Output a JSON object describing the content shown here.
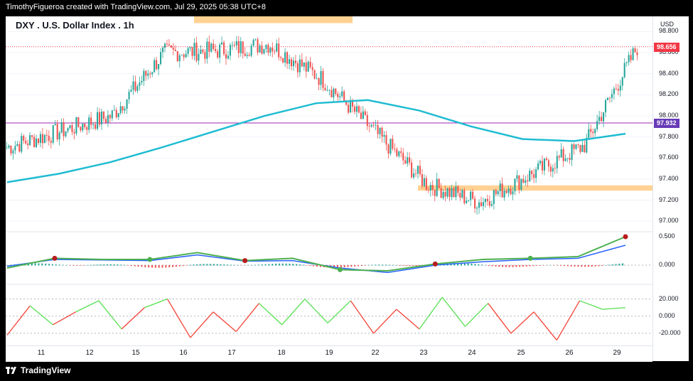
{
  "header": {
    "text": "TimothyFigueroa created with TradingView.com, Jul 29, 2025 05:38 UTC+8"
  },
  "branding": {
    "name": "TradingView"
  },
  "chart_header": {
    "symbol": "DXY . U.S. Dollar Index . 1h",
    "currency": "USD"
  },
  "price_axis": {
    "labels": [
      "98.800",
      "98.600",
      "98.400",
      "98.200",
      "98.000",
      "97.800",
      "97.600",
      "97.400",
      "97.200",
      "97.000"
    ],
    "current_price_tag": "98.656",
    "line_tag": "97.932"
  },
  "macd_axis": {
    "labels": [
      "0.500",
      "0.000"
    ]
  },
  "osc_axis": {
    "labels": [
      "20.000",
      "0.000",
      "-20.000"
    ]
  },
  "time_axis": {
    "labels": [
      "11",
      "12",
      "15",
      "16",
      "17",
      "18",
      "19",
      "22",
      "23",
      "24",
      "25",
      "26",
      "29"
    ]
  },
  "colors": {
    "up": "#26a69a",
    "down": "#ef5350",
    "ma": "#1fbcd2",
    "zone": "#ffca80",
    "horizontal_line": "#9c27b0",
    "macd_fast": "#4caf50",
    "macd_slow": "#2962ff",
    "macd_red": "#b71c1c",
    "osc_up": "#55e04f",
    "osc_down": "#f44336",
    "price_tag": "#f23645"
  },
  "chart_data": [
    {
      "type": "line",
      "title": "DXY . U.S. Dollar Index . 1h",
      "ylabel": "USD",
      "ylim": [
        96.9,
        98.85
      ],
      "x": [
        "11",
        "12",
        "15",
        "16",
        "17",
        "18",
        "19",
        "22",
        "23",
        "24",
        "25",
        "26",
        "29"
      ],
      "series": [
        {
          "values": [
            97.7,
            97.85,
            98.0,
            98.6,
            98.62,
            98.68,
            98.35,
            97.85,
            97.35,
            97.18,
            97.45,
            97.72,
            98.65
          ]
        },
        {
          "values": [
            97.37,
            97.45,
            97.56,
            97.7,
            97.85,
            98.0,
            98.12,
            98.15,
            98.05,
            97.9,
            97.78,
            97.76,
            97.83
          ]
        }
      ],
      "zones": [
        {
          "from": 98.88,
          "to": 98.95
        },
        {
          "from": 97.29,
          "to": 97.34
        }
      ],
      "horizontal_line": 97.932,
      "last_price": 98.656
    },
    {
      "type": "line",
      "ylim": [
        -0.25,
        0.55
      ],
      "series": [
        {
          "values": [
            -0.05,
            0.12,
            0.1,
            0.1,
            0.22,
            0.08,
            0.12,
            -0.08,
            -0.1,
            0.02,
            0.1,
            0.12,
            0.15,
            0.5
          ]
        },
        {
          "values": [
            -0.02,
            0.1,
            0.09,
            0.08,
            0.18,
            0.07,
            0.08,
            -0.05,
            -0.13,
            0.0,
            0.06,
            0.1,
            0.12,
            0.35
          ]
        }
      ]
    },
    {
      "type": "line",
      "ylim": [
        -30,
        28
      ],
      "series": [
        {
          "values": [
            -22,
            12,
            -10,
            5,
            18,
            -15,
            10,
            20,
            -25,
            5,
            -18,
            15,
            -10,
            20,
            -8,
            18,
            -20,
            8,
            -15,
            22,
            -12,
            15,
            -20,
            5,
            -28,
            18,
            8,
            10
          ]
        }
      ]
    }
  ]
}
